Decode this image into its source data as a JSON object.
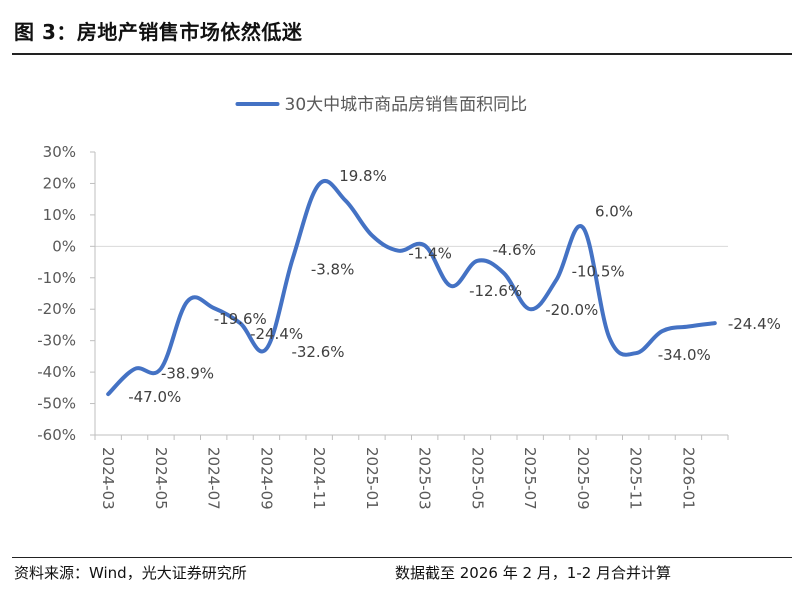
{
  "figure": {
    "title": "图 3：房地产销售市场依然低迷",
    "source": "资料来源：Wind，光大证券研究所",
    "note": "数据截至 2026 年 2 月，1-2 月合并计算"
  },
  "colors": {
    "series": "#4472C4",
    "zero_line": "#D9D9D9",
    "axis": "#BFBFBF"
  },
  "chart_data": {
    "type": "line",
    "title": "",
    "legend": {
      "position": "top",
      "label": "30大中城市商品房销售面积同比"
    },
    "ylim": [
      -60,
      30
    ],
    "yticks": [
      30,
      20,
      10,
      0,
      -10,
      -20,
      -30,
      -40,
      -50,
      -60
    ],
    "ytick_labels": [
      "30%",
      "20%",
      "10%",
      "0%",
      "-10%",
      "-20%",
      "-30%",
      "-40%",
      "-50%",
      "-60%"
    ],
    "x_tick_labels": [
      "2024-03",
      "2024-05",
      "2024-07",
      "2024-09",
      "2024-11",
      "2025-01",
      "2025-03",
      "2025-05",
      "2025-07",
      "2025-09",
      "2025-11",
      "2026-01"
    ],
    "series": [
      {
        "name": "30大中城市商品房销售面积同比",
        "x": [
          "2024-03",
          "2024-04",
          "2024-05",
          "2024-06",
          "2024-07",
          "2024-08",
          "2024-09",
          "2024-10",
          "2024-11",
          "2024-12",
          "2025-01",
          "2025-02",
          "2025-03",
          "2025-04",
          "2025-05",
          "2025-06",
          "2025-07",
          "2025-08",
          "2025-09",
          "2025-10",
          "2025-11",
          "2025-12",
          "2026-01",
          "2026-02"
        ],
        "values": [
          -47.0,
          -39.0,
          -38.9,
          -17.5,
          -19.6,
          -24.4,
          -32.6,
          -3.8,
          19.8,
          14.5,
          3.5,
          -1.4,
          0.3,
          -12.6,
          -4.6,
          -8.5,
          -20.0,
          -10.5,
          6.0,
          -29.0,
          -34.0,
          -27.0,
          -25.5,
          -24.4
        ]
      }
    ],
    "data_labels": [
      {
        "text": "-47.0%",
        "at": "2024-03"
      },
      {
        "text": "-38.9%",
        "at": "2024-05"
      },
      {
        "text": "-19.6%",
        "at": "2024-07"
      },
      {
        "text": "-24.4%",
        "at": "2024-08"
      },
      {
        "text": "-32.6%",
        "at": "2024-09"
      },
      {
        "text": "-3.8%",
        "at": "2024-10"
      },
      {
        "text": "19.8%",
        "at": "2024-11"
      },
      {
        "text": "-1.4%",
        "at": "2025-02"
      },
      {
        "text": "-12.6%",
        "at": "2025-04"
      },
      {
        "text": "-4.6%",
        "at": "2025-05"
      },
      {
        "text": "-20.0%",
        "at": "2025-07"
      },
      {
        "text": "-10.5%",
        "at": "2025-08"
      },
      {
        "text": "6.0%",
        "at": "2025-09"
      },
      {
        "text": "-34.0%",
        "at": "2025-11"
      },
      {
        "text": "-24.4%",
        "at": "2026-02"
      }
    ]
  }
}
